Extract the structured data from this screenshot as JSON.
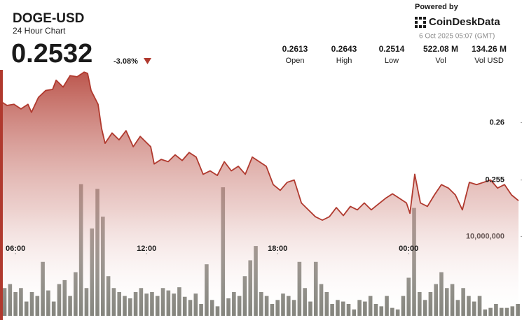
{
  "header": {
    "title": "DOGE-USD",
    "subtitle": "24 Hour Chart",
    "price": "0.2532",
    "change": "-3.08%",
    "stats": [
      {
        "value": "0.2613",
        "label": "Open"
      },
      {
        "value": "0.2643",
        "label": "High"
      },
      {
        "value": "0.2514",
        "label": "Low"
      },
      {
        "value": "522.08 M",
        "label": "Vol"
      },
      {
        "value": "134.26 M",
        "label": "Vol USD"
      }
    ],
    "powered_by": "Powered by",
    "brand": "CoinDeskData",
    "timestamp": "6 Oct 2025 05:07 (GMT)"
  },
  "chart_data": [
    {
      "type": "line",
      "x": [
        5.29,
        5.61,
        5.93,
        6.25,
        6.57,
        6.73,
        7.05,
        7.38,
        7.7,
        7.86,
        8.18,
        8.5,
        8.82,
        9.14,
        9.3,
        9.46,
        9.78,
        9.94,
        10.1,
        10.42,
        10.74,
        11.06,
        11.39,
        11.71,
        12.03,
        12.19,
        12.35,
        12.67,
        12.99,
        13.31,
        13.63,
        13.95,
        14.27,
        14.59,
        14.91,
        15.24,
        15.56,
        15.88,
        16.2,
        16.52,
        16.84,
        17.16,
        17.48,
        17.8,
        18.12,
        18.44,
        18.76,
        19.09,
        19.41,
        19.73,
        20.05,
        20.37,
        20.69,
        21.01,
        21.33,
        21.65,
        21.97,
        22.29,
        22.61,
        22.94,
        23.26,
        23.58,
        23.9,
        24.06,
        24.28,
        24.54,
        24.86,
        25.18,
        25.5,
        25.82,
        26.14,
        26.46,
        26.78,
        27.11,
        27.43,
        27.75,
        28.07,
        28.39,
        28.71,
        29.03
      ],
      "series": [
        {
          "color": "#b0392e",
          "values": [
            0.2619,
            0.2615,
            0.2616,
            0.2612,
            0.2616,
            0.2609,
            0.2622,
            0.2628,
            0.2629,
            0.2637,
            0.2631,
            0.2641,
            0.264,
            0.2644,
            0.2643,
            0.2628,
            0.2616,
            0.2595,
            0.2582,
            0.2591,
            0.2585,
            0.2593,
            0.2579,
            0.2588,
            0.2582,
            0.2579,
            0.2564,
            0.2568,
            0.2566,
            0.2572,
            0.2567,
            0.2574,
            0.257,
            0.2555,
            0.2558,
            0.2554,
            0.2566,
            0.2558,
            0.2562,
            0.2555,
            0.257,
            0.2566,
            0.2562,
            0.2546,
            0.2541,
            0.2548,
            0.255,
            0.253,
            0.2524,
            0.2518,
            0.2515,
            0.2518,
            0.2526,
            0.2519,
            0.2527,
            0.2524,
            0.253,
            0.2524,
            0.2529,
            0.2534,
            0.2538,
            0.2534,
            0.253,
            0.2521,
            0.2555,
            0.253,
            0.2527,
            0.2537,
            0.2546,
            0.2543,
            0.2537,
            0.2524,
            0.2548,
            0.2546,
            0.2548,
            0.255,
            0.2543,
            0.2546,
            0.2537,
            0.2532
          ]
        }
      ],
      "xlim": [
        5.29,
        29.19
      ],
      "xticks": [
        {
          "value": 6,
          "label": "06:00"
        },
        {
          "value": 12,
          "label": "12:00"
        },
        {
          "value": 18,
          "label": "18:00"
        },
        {
          "value": 24,
          "label": "00:00"
        }
      ],
      "ylim": [
        0.2428,
        0.2646
      ],
      "yticks": [
        0.26,
        0.255
      ]
    },
    {
      "type": "bar",
      "x": [
        5.5,
        5.75,
        6,
        6.25,
        6.5,
        6.75,
        7,
        7.25,
        7.5,
        7.75,
        8,
        8.25,
        8.5,
        8.75,
        9,
        9.25,
        9.5,
        9.75,
        10,
        10.25,
        10.5,
        10.75,
        11,
        11.25,
        11.5,
        11.75,
        12,
        12.25,
        12.5,
        12.75,
        13,
        13.25,
        13.5,
        13.75,
        14,
        14.25,
        14.5,
        14.75,
        15,
        15.25,
        15.5,
        15.75,
        16,
        16.25,
        16.5,
        16.75,
        17,
        17.25,
        17.5,
        17.75,
        18,
        18.25,
        18.5,
        18.75,
        19,
        19.25,
        19.5,
        19.75,
        20,
        20.25,
        20.5,
        20.75,
        21,
        21.25,
        21.5,
        21.75,
        22,
        22.25,
        22.5,
        22.75,
        23,
        23.25,
        23.5,
        23.75,
        24,
        24.25,
        24.5,
        24.75,
        25,
        25.25,
        25.5,
        25.75,
        26,
        26.25,
        26.5,
        26.75,
        27,
        27.25,
        27.5,
        27.75,
        28,
        28.25,
        28.5,
        28.75,
        29
      ],
      "values": [
        3500000,
        4000000,
        3000000,
        3500000,
        1800000,
        3000000,
        2500000,
        6800000,
        3200000,
        1800000,
        4000000,
        4500000,
        2500000,
        5500000,
        16600000,
        3500000,
        11000000,
        16000000,
        12500000,
        5000000,
        3500000,
        3000000,
        2500000,
        2200000,
        3000000,
        3500000,
        2800000,
        3000000,
        2500000,
        3500000,
        3200000,
        2800000,
        3600000,
        2400000,
        2000000,
        2800000,
        1500000,
        6500000,
        2000000,
        1200000,
        16200000,
        2200000,
        3000000,
        2500000,
        5000000,
        7000000,
        8800000,
        3000000,
        2500000,
        1500000,
        2000000,
        2800000,
        2500000,
        2000000,
        6800000,
        3500000,
        1800000,
        6800000,
        4000000,
        3000000,
        1500000,
        2000000,
        1800000,
        1500000,
        800000,
        2000000,
        1800000,
        2500000,
        1500000,
        1200000,
        2500000,
        1000000,
        800000,
        2500000,
        4800000,
        13600000,
        3000000,
        2000000,
        3000000,
        4000000,
        5500000,
        3500000,
        4000000,
        2000000,
        3500000,
        2500000,
        1800000,
        2500000,
        800000,
        1000000,
        1500000,
        1000000,
        1000000,
        1200000,
        1500000
      ],
      "color": "#6c6c64",
      "xlim": [
        5.29,
        29.19
      ],
      "ylim": [
        0,
        31000000
      ],
      "yticks": [
        {
          "value": 10000000,
          "label": "10,000,000"
        }
      ]
    }
  ]
}
